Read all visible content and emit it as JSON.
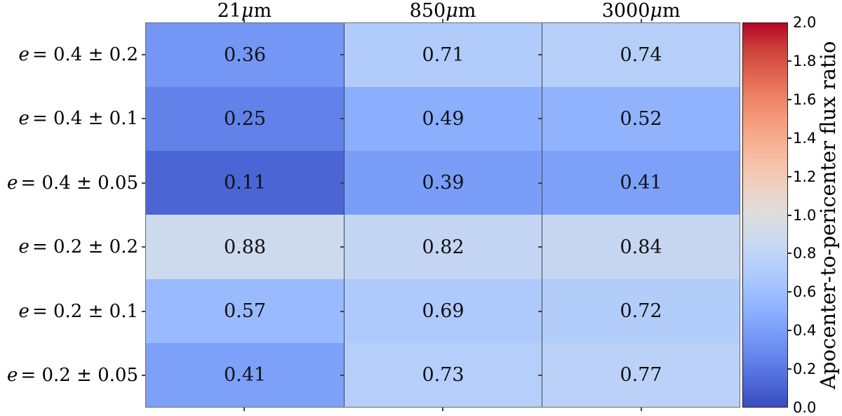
{
  "chart_data": {
    "type": "heatmap",
    "title": "",
    "columns": [
      {
        "label": "21 μm"
      },
      {
        "label": "850 μm"
      },
      {
        "label": "3000 μm"
      }
    ],
    "rows": [
      {
        "label": "e = 0.4 ± 0.2"
      },
      {
        "label": "e = 0.4 ± 0.1"
      },
      {
        "label": "e = 0.4 ± 0.05"
      },
      {
        "label": "e = 0.2 ± 0.2"
      },
      {
        "label": "e = 0.2 ± 0.1"
      },
      {
        "label": "e = 0.2 ± 0.05"
      }
    ],
    "values": [
      [
        0.36,
        0.71,
        0.74
      ],
      [
        0.25,
        0.49,
        0.52
      ],
      [
        0.11,
        0.39,
        0.41
      ],
      [
        0.88,
        0.82,
        0.84
      ],
      [
        0.57,
        0.69,
        0.72
      ],
      [
        0.41,
        0.73,
        0.77
      ]
    ],
    "grid": "off",
    "colorbar": {
      "label": "Apocenter-to-pericenter flux ratio",
      "min": 0.0,
      "max": 2.0,
      "tick_labels": [
        "0.0",
        "0.2",
        "0.4",
        "0.6",
        "0.8",
        "1.0",
        "1.2",
        "1.4",
        "1.6",
        "1.8",
        "2.0"
      ],
      "colormap": "coolwarm",
      "colormap_anchors": [
        "#3B4CC0",
        "#4D68D7",
        "#6282EA",
        "#779AF7",
        "#8DB0FE",
        "#A3C2FF",
        "#B8D0F9",
        "#CCD9EE",
        "#DDDDDD",
        "#ECD3C5",
        "#F5C4AD",
        "#F7B194",
        "#F49A7B",
        "#EC7F63",
        "#DE604D",
        "#CB3E38",
        "#B40426"
      ]
    }
  }
}
